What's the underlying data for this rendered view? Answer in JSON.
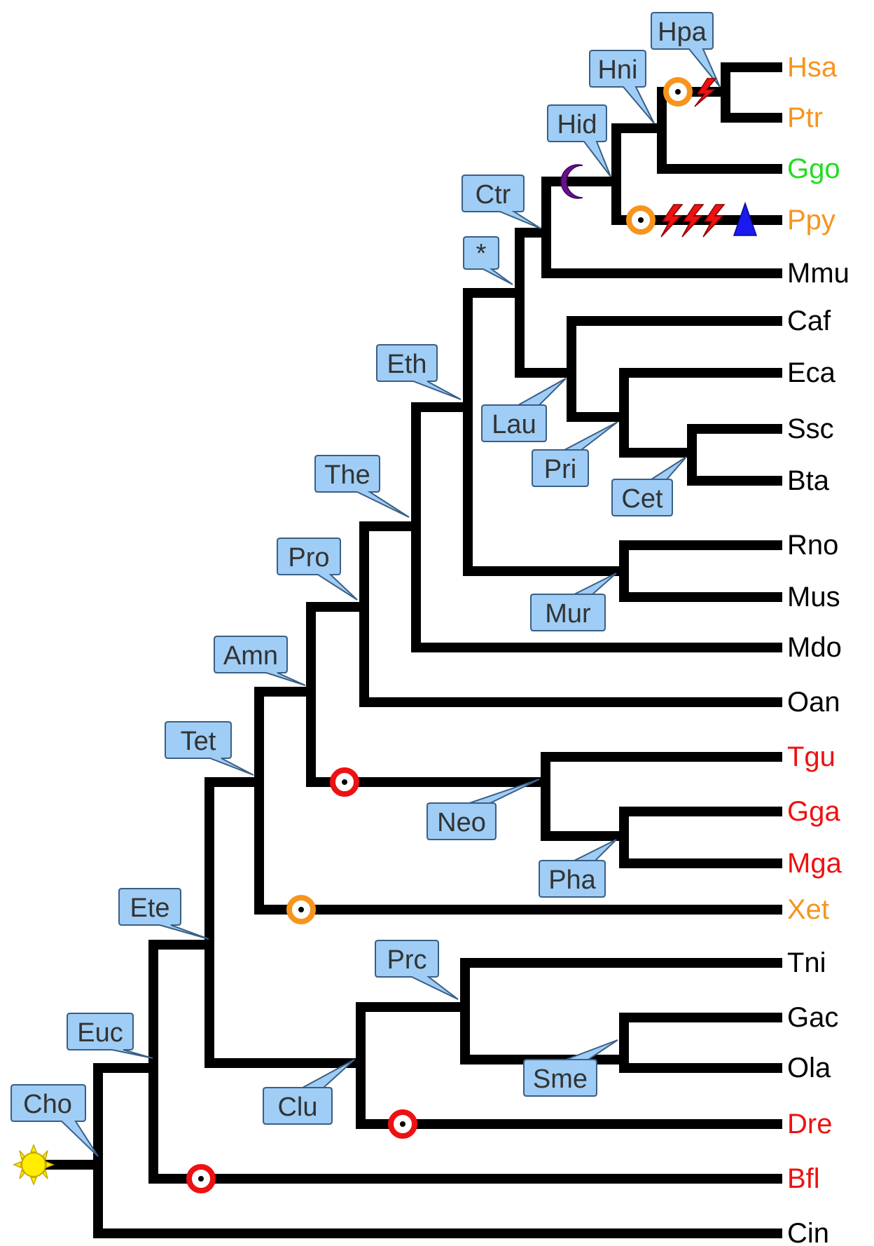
{
  "leaves": [
    {
      "label": "Hsa",
      "color": "#f7941d"
    },
    {
      "label": "Ptr",
      "color": "#f7941d"
    },
    {
      "label": "Ggo",
      "color": "#22dd22"
    },
    {
      "label": "Ppy",
      "color": "#f7941d"
    },
    {
      "label": "Mmu",
      "color": "#000000"
    },
    {
      "label": "Caf",
      "color": "#000000"
    },
    {
      "label": "Eca",
      "color": "#000000"
    },
    {
      "label": "Ssc",
      "color": "#000000"
    },
    {
      "label": "Bta",
      "color": "#000000"
    },
    {
      "label": "Rno",
      "color": "#000000"
    },
    {
      "label": "Mus",
      "color": "#000000"
    },
    {
      "label": "Mdo",
      "color": "#000000"
    },
    {
      "label": "Oan",
      "color": "#000000"
    },
    {
      "label": "Tgu",
      "color": "#ee1111"
    },
    {
      "label": "Gga",
      "color": "#ee1111"
    },
    {
      "label": "Mga",
      "color": "#ee1111"
    },
    {
      "label": "Xet",
      "color": "#f7941d"
    },
    {
      "label": "Tni",
      "color": "#000000"
    },
    {
      "label": "Gac",
      "color": "#000000"
    },
    {
      "label": "Ola",
      "color": "#000000"
    },
    {
      "label": "Dre",
      "color": "#ee1111"
    },
    {
      "label": "Bfl",
      "color": "#ee1111"
    },
    {
      "label": "Cin",
      "color": "#000000"
    }
  ],
  "nodes": [
    {
      "label": "Cho"
    },
    {
      "label": "Euc"
    },
    {
      "label": "Ete"
    },
    {
      "label": "Tet"
    },
    {
      "label": "Amn"
    },
    {
      "label": "Pro"
    },
    {
      "label": "The"
    },
    {
      "label": "Eth"
    },
    {
      "label": "*"
    },
    {
      "label": "Ctr"
    },
    {
      "label": "Hid"
    },
    {
      "label": "Hni"
    },
    {
      "label": "Hpa"
    },
    {
      "label": "Lau"
    },
    {
      "label": "Pri"
    },
    {
      "label": "Cet"
    },
    {
      "label": "Mur"
    },
    {
      "label": "Neo"
    },
    {
      "label": "Pha"
    },
    {
      "label": "Clu"
    },
    {
      "label": "Prc"
    },
    {
      "label": "Sme"
    }
  ],
  "markers": {
    "ring_orange": "#f7941d",
    "ring_red": "#ee1111",
    "crescent": "#6a0f8e",
    "triangle": "#1a1aee",
    "sun": "#ffee00",
    "lightning": "#ee1111"
  }
}
